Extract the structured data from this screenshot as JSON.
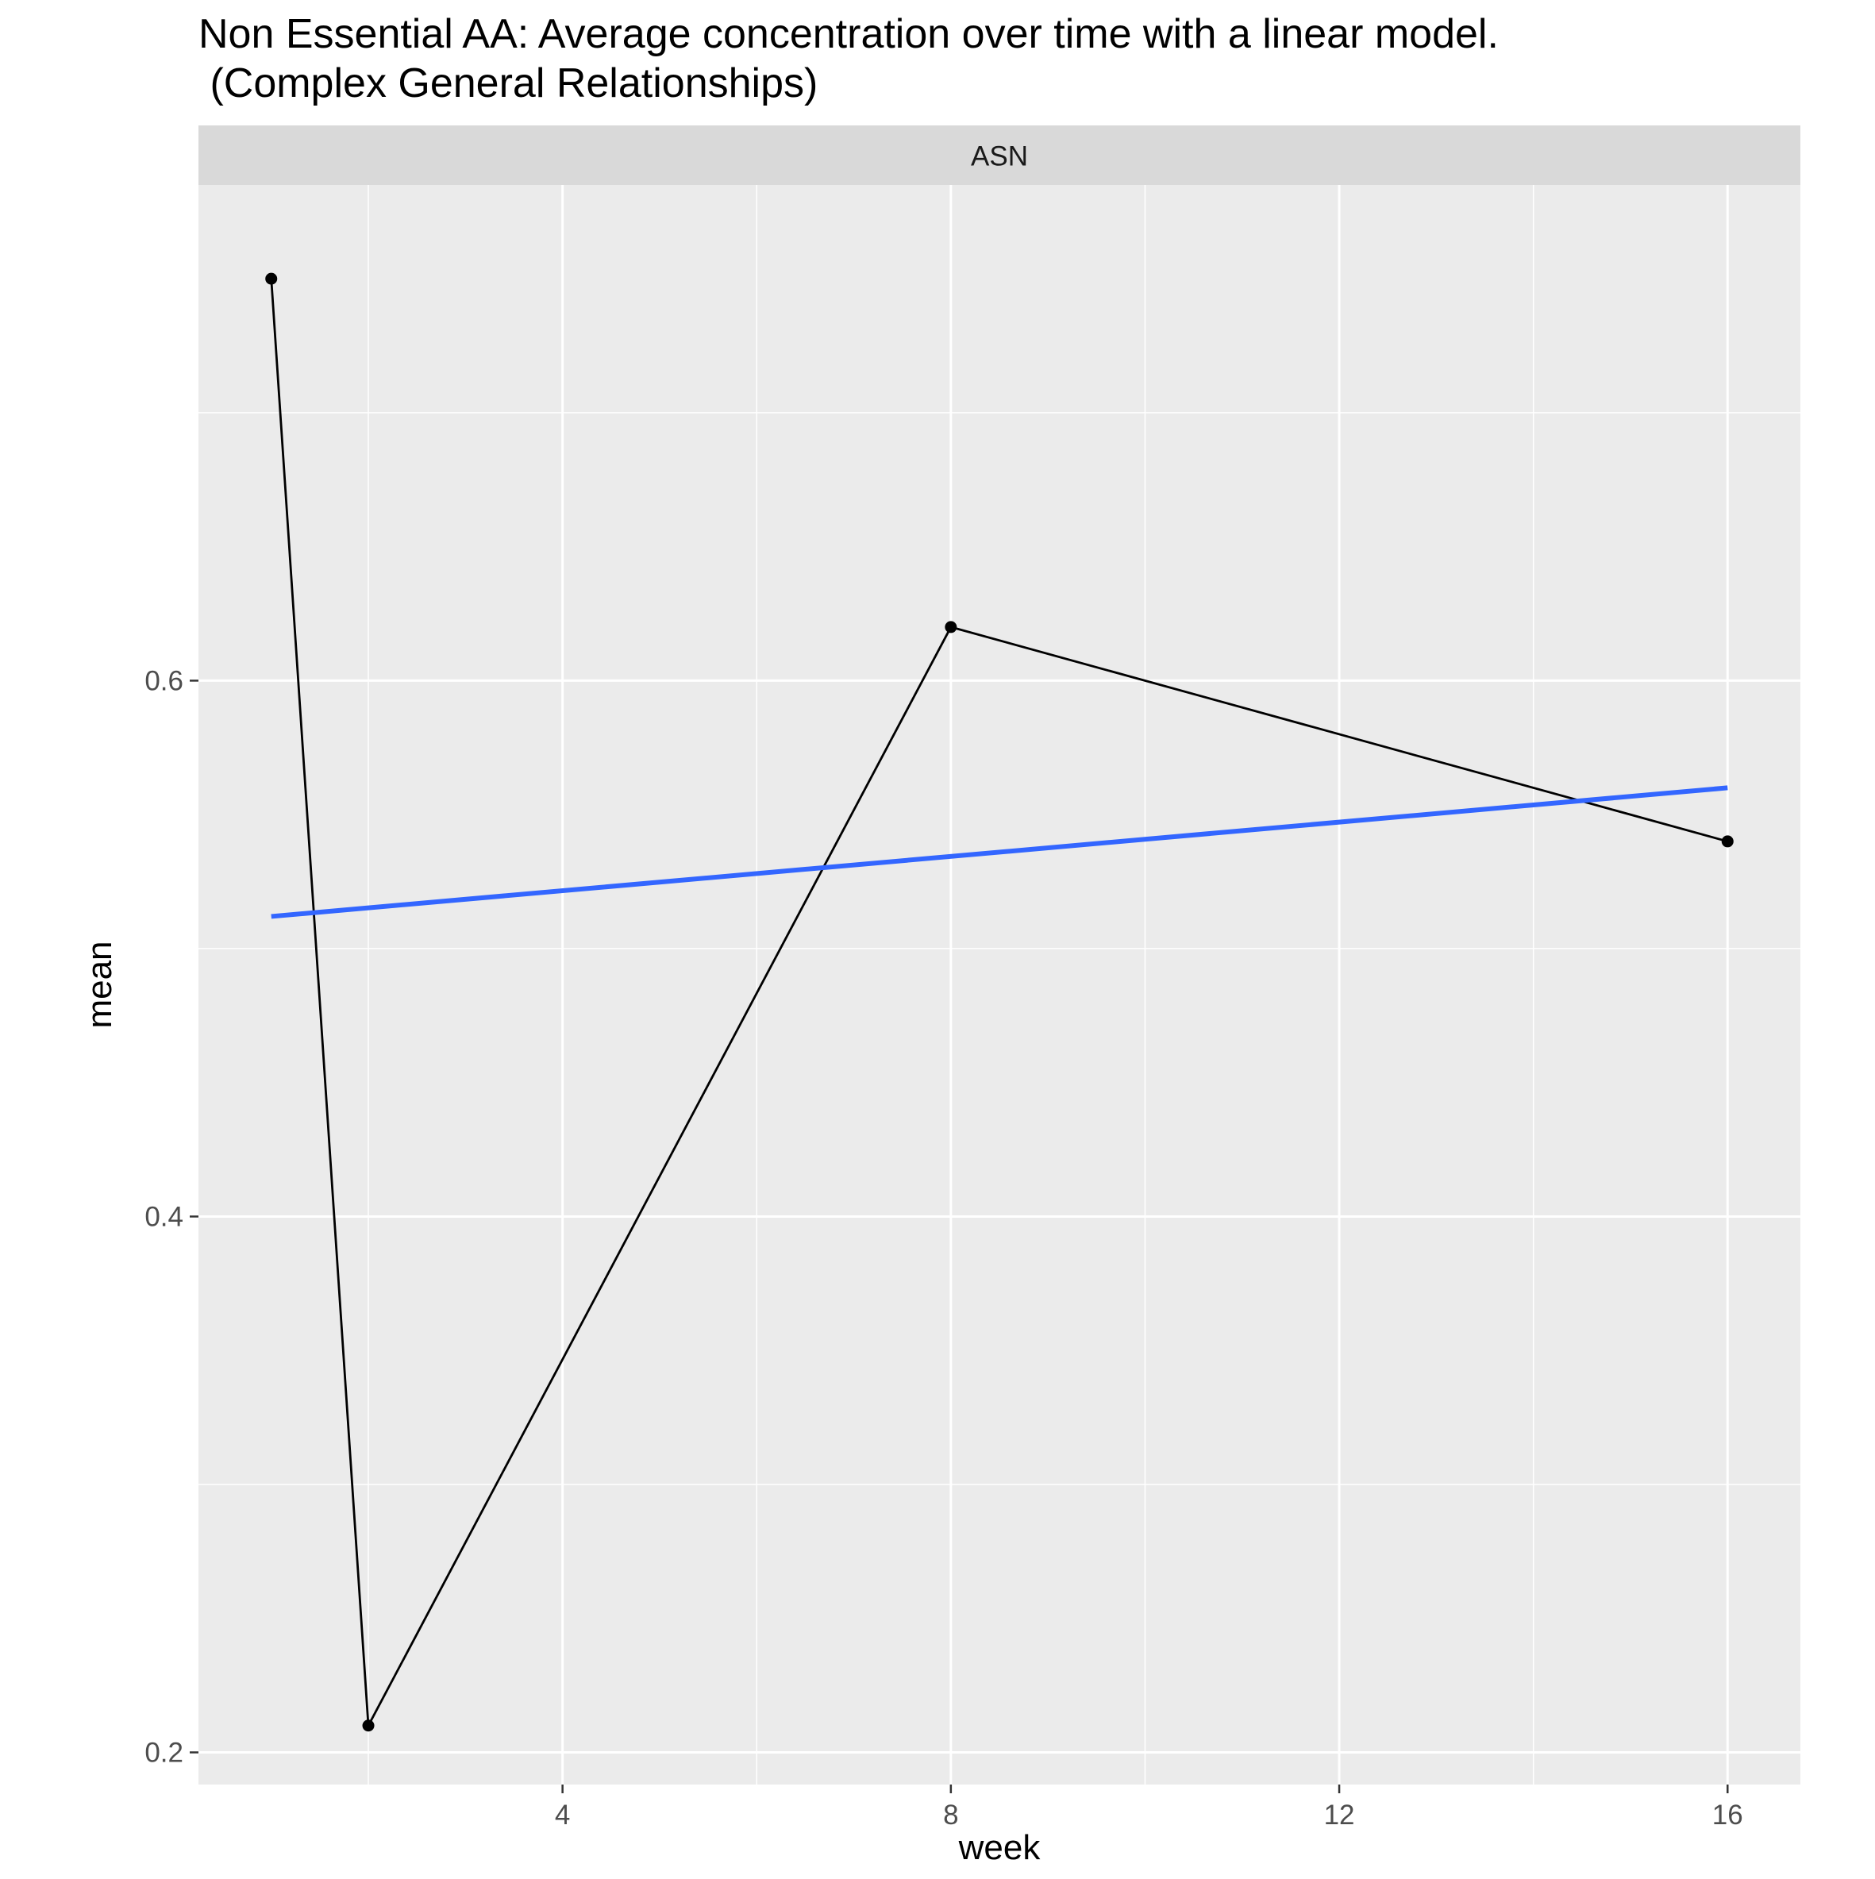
{
  "chart_data": {
    "type": "line",
    "title": "Non Essential AA: Average concentration over time with a linear model.\n (Complex General Relationships)",
    "facet_label": "ASN",
    "xlabel": "week",
    "ylabel": "mean",
    "xlim": [
      0.25,
      16.75
    ],
    "ylim": [
      0.188,
      0.785
    ],
    "x_ticks": [
      {
        "value": 4,
        "label": "4"
      },
      {
        "value": 8,
        "label": "8"
      },
      {
        "value": 12,
        "label": "12"
      },
      {
        "value": 16,
        "label": "16"
      }
    ],
    "x_minor_ticks": [
      2,
      6,
      10,
      14
    ],
    "y_ticks": [
      {
        "value": 0.2,
        "label": "0.2"
      },
      {
        "value": 0.4,
        "label": "0.4"
      },
      {
        "value": 0.6,
        "label": "0.6"
      }
    ],
    "y_minor_ticks": [
      0.3,
      0.5,
      0.7
    ],
    "grid": true,
    "legend": "none",
    "series": [
      {
        "x": [
          1,
          2,
          8,
          16
        ],
        "y": [
          0.75,
          0.21,
          0.62,
          0.54
        ],
        "color": "#000000",
        "markers": true
      },
      {
        "x": [
          1,
          16
        ],
        "y": [
          0.512,
          0.56
        ],
        "color": "#3366FF",
        "markers": false
      }
    ],
    "colors": {
      "panel_background": "#EBEBEB",
      "strip_background": "#D9D9D9",
      "grid": "#FFFFFF"
    }
  }
}
